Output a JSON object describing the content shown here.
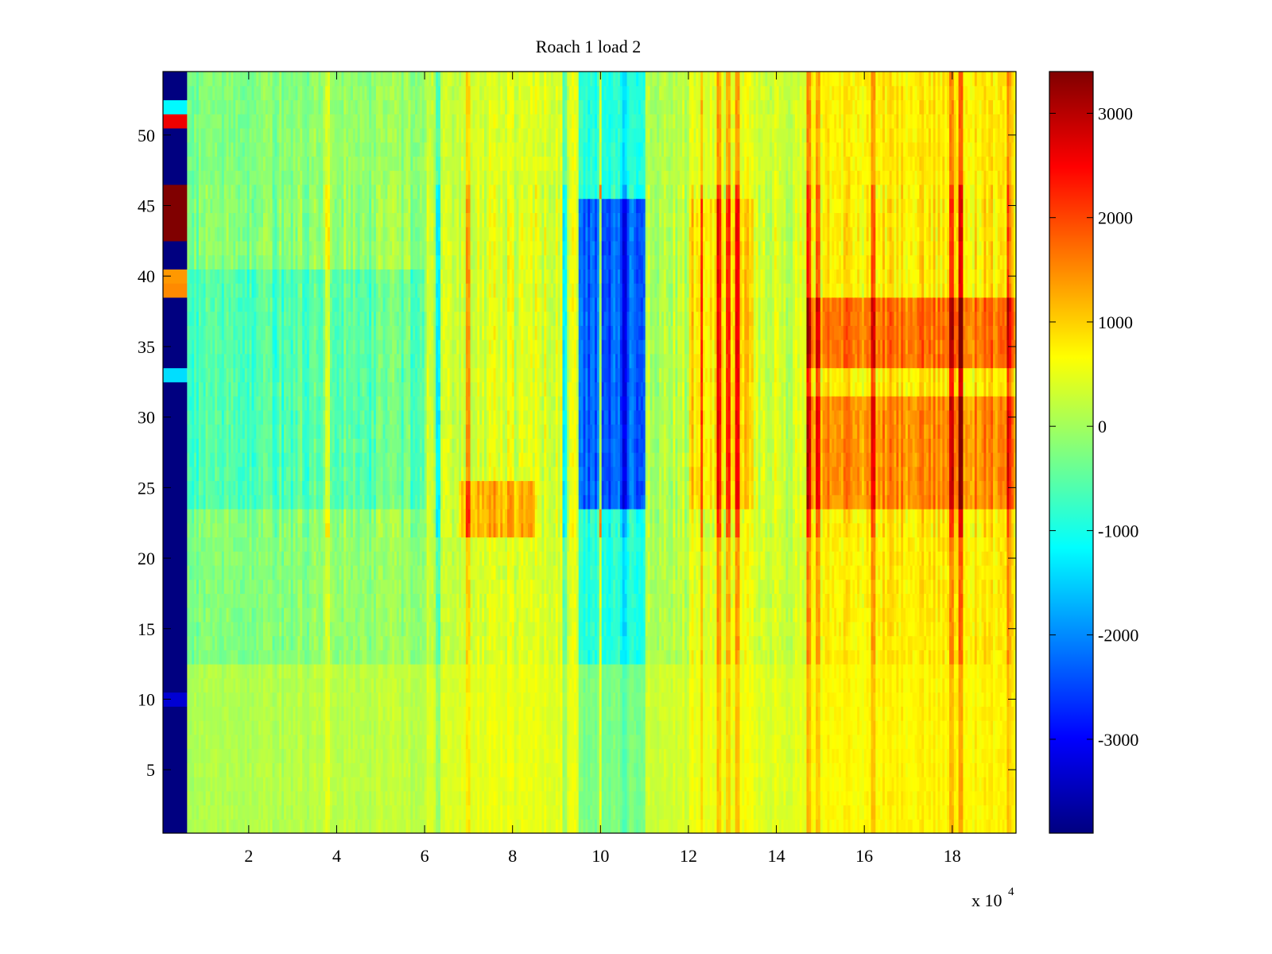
{
  "chart_data": {
    "type": "heatmap",
    "title": "Roach 1 load 2",
    "xlabel": "",
    "ylabel": "",
    "x_multiplier_label": {
      "prefix": "x 10",
      "exponent": "4"
    },
    "xlim": [
      0.05,
      19.45
    ],
    "ylim": [
      0.5,
      54.5
    ],
    "x_ticks": [
      2,
      4,
      6,
      8,
      10,
      12,
      14,
      16,
      18
    ],
    "x_tick_labels": [
      "2",
      "4",
      "6",
      "8",
      "10",
      "12",
      "14",
      "16",
      "18"
    ],
    "y_ticks": [
      5,
      10,
      15,
      20,
      25,
      30,
      35,
      40,
      45,
      50
    ],
    "y_tick_labels": [
      "5",
      "10",
      "15",
      "20",
      "25",
      "30",
      "35",
      "40",
      "45",
      "50"
    ],
    "rows": 54,
    "colormap": "jet",
    "clim": [
      -3900,
      3400
    ],
    "colorbar": {
      "position": "right",
      "ticks": [
        -3000,
        -2000,
        -1000,
        0,
        1000,
        2000,
        3000
      ],
      "tick_labels": [
        "-3000",
        "-2000",
        "-1000",
        "0",
        "1000",
        "2000",
        "3000"
      ]
    },
    "first_column": {
      "x_range": [
        0.05,
        0.6
      ],
      "baseline_value": -3900,
      "rows": [
        {
          "row": 10,
          "value": -3300
        },
        {
          "row": 33,
          "value": -1400
        },
        {
          "row": 39,
          "value": 1500
        },
        {
          "row": 40,
          "value": 1400
        },
        {
          "row": 43,
          "value": 3400
        },
        {
          "row": 44,
          "value": 3400
        },
        {
          "row": 45,
          "value": 3400
        },
        {
          "row": 46,
          "value": 3400
        },
        {
          "row": 51,
          "value": 2600
        },
        {
          "row": 52,
          "value": -1200
        }
      ]
    },
    "column_bands": [
      {
        "x": [
          0.6,
          2.0
        ],
        "value": -300
      },
      {
        "x": [
          2.0,
          3.5
        ],
        "value": -200
      },
      {
        "x": [
          3.5,
          6.0
        ],
        "value": -100
      },
      {
        "x": [
          6.0,
          6.8
        ],
        "value": 150
      },
      {
        "x": [
          6.8,
          9.5
        ],
        "value": 400
      },
      {
        "x": [
          9.5,
          11.0
        ],
        "value": -900
      },
      {
        "x": [
          11.0,
          12.0
        ],
        "value": 150
      },
      {
        "x": [
          12.0,
          13.5
        ],
        "value": 500
      },
      {
        "x": [
          13.5,
          14.7
        ],
        "value": 300
      },
      {
        "x": [
          14.7,
          16.1
        ],
        "value": 700
      },
      {
        "x": [
          16.1,
          19.45
        ],
        "value": 800
      }
    ],
    "strong_stripes": [
      {
        "x": 3.8,
        "value": 1100
      },
      {
        "x": 6.3,
        "value": -1200
      },
      {
        "x": 7.0,
        "value": 1200
      },
      {
        "x": 9.2,
        "value": -1000
      },
      {
        "x": 10.0,
        "value": 1400
      },
      {
        "x": 10.55,
        "value": -1800
      },
      {
        "x": 12.3,
        "value": 1900
      },
      {
        "x": 12.7,
        "value": 2200
      },
      {
        "x": 12.9,
        "value": 1800
      },
      {
        "x": 13.1,
        "value": 2400
      },
      {
        "x": 14.75,
        "value": 2300
      },
      {
        "x": 14.95,
        "value": 2100
      },
      {
        "x": 16.2,
        "value": 2200
      },
      {
        "x": 18.0,
        "value": 2000
      },
      {
        "x": 18.2,
        "value": 2400
      },
      {
        "x": 19.3,
        "value": 1900
      }
    ],
    "hot_row_bands": [
      {
        "rows": [
          24,
          31
        ],
        "x": [
          14.7,
          19.45
        ],
        "boost": 700
      },
      {
        "rows": [
          34,
          38
        ],
        "x": [
          14.7,
          19.45
        ],
        "boost": 900
      },
      {
        "rows": [
          22,
          25
        ],
        "x": [
          6.8,
          8.5
        ],
        "boost": 800
      },
      {
        "rows": [
          24,
          45
        ],
        "x": [
          12.0,
          13.5
        ],
        "boost": 400
      }
    ],
    "cold_row_bands": [
      {
        "rows": [
          24,
          45
        ],
        "x": [
          9.5,
          11.0
        ],
        "boost": -1400
      },
      {
        "rows": [
          24,
          40
        ],
        "x": [
          0.6,
          6.0
        ],
        "boost": -400
      }
    ]
  }
}
